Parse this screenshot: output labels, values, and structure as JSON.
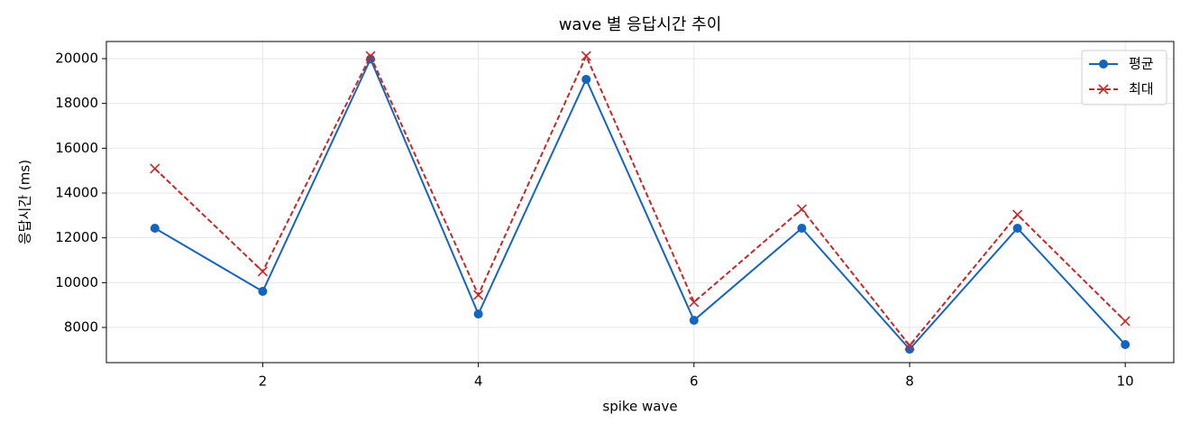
{
  "chart_data": {
    "type": "line",
    "title": "wave 별 응답시간 추이",
    "x_label": "spike wave",
    "y_label": "응답시간 (ms)",
    "x": [
      1,
      2,
      3,
      4,
      5,
      6,
      7,
      8,
      9,
      10
    ],
    "series": [
      {
        "name": "평균",
        "color": "#1565c0",
        "dash": false,
        "marker": "circle",
        "values": [
          12430,
          9610,
          19980,
          8600,
          19075,
          8320,
          12430,
          7030,
          12430,
          7235
        ]
      },
      {
        "name": "최대",
        "color": "#c62828",
        "dash": true,
        "marker": "x",
        "values": [
          15090,
          10500,
          20120,
          9450,
          20120,
          9130,
          13280,
          7195,
          13035,
          8280
        ]
      }
    ],
    "xlim": [
      0.55,
      10.45
    ],
    "xticks": [
      2,
      4,
      6,
      8,
      10
    ],
    "ylim": [
      6430,
      20765
    ],
    "yticks": [
      8000,
      10000,
      12000,
      14000,
      16000,
      18000,
      20000
    ],
    "grid": true,
    "legend": "upper-right"
  }
}
